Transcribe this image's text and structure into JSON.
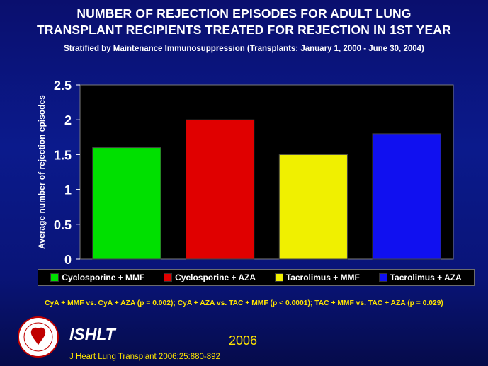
{
  "header": {
    "title_line1": "NUMBER OF REJECTION EPISODES FOR ADULT LUNG",
    "title_line2": "TRANSPLANT RECIPIENTS TREATED FOR REJECTION IN 1ST YEAR",
    "subtitle": "Stratified by Maintenance Immunosuppression  (Transplants: January 1, 2000 - June 30, 2004)"
  },
  "chart_data": {
    "type": "bar",
    "title": "",
    "xlabel": "",
    "ylabel": "Average number of rejection episodes",
    "categories": [
      "Cyclosporine + MMF",
      "Cyclosporine + AZA",
      "Tacrolimus + MMF",
      "Tacrolimus + AZA"
    ],
    "values": [
      1.6,
      2.0,
      1.5,
      1.8
    ],
    "colors": [
      "#00e000",
      "#e00000",
      "#f0f000",
      "#1010f0"
    ],
    "ylim": [
      0,
      2.5
    ],
    "yticks": [
      "0",
      "0.5",
      "1",
      "1.5",
      "2",
      "2.5"
    ],
    "grid": false,
    "legend": "bottom",
    "plot_background": "#000000"
  },
  "footer": {
    "stats": "CyA + MMF vs. CyA + AZA (p = 0.002); CyA + AZA vs. TAC + MMF (p < 0.0001); TAC + MMF vs. TAC + AZA (p = 0.029)",
    "org": "ISHLT",
    "year": "2006",
    "citation": "J Heart Lung Transplant 2006;25:880-892"
  },
  "colors": {
    "background": "#0a0f6e",
    "accent_yellow": "#ffe400"
  }
}
